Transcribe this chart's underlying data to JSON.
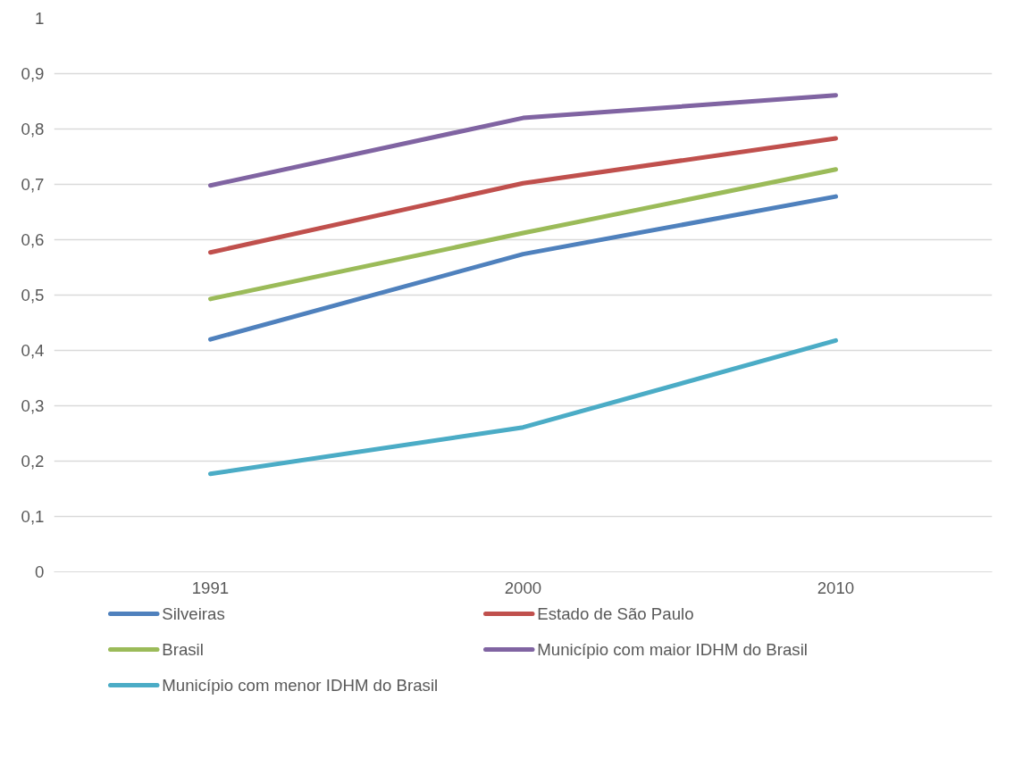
{
  "chart_data": {
    "type": "line",
    "categories": [
      "1991",
      "2000",
      "2010"
    ],
    "series": [
      {
        "name": "Silveiras",
        "color": "#4f81bd",
        "values": [
          0.42,
          0.574,
          0.678
        ]
      },
      {
        "name": "Estado de São Paulo",
        "color": "#c0504d",
        "values": [
          0.577,
          0.702,
          0.783
        ]
      },
      {
        "name": "Brasil",
        "color": "#9bbb59",
        "values": [
          0.493,
          0.612,
          0.727
        ]
      },
      {
        "name": "Município com maior IDHM do Brasil",
        "color": "#8064a2",
        "values": [
          0.698,
          0.82,
          0.861
        ]
      },
      {
        "name": "Município com menor IDHM do Brasil",
        "color": "#4bacc6",
        "values": [
          0.177,
          0.261,
          0.418
        ]
      }
    ],
    "ylim": [
      0,
      1
    ],
    "yticks": [
      0,
      {
        "value": 0.1,
        "label": "0,1"
      },
      {
        "value": 0.2,
        "label": "0,2"
      },
      {
        "value": 0.3,
        "label": "0,3"
      },
      {
        "value": 0.4,
        "label": "0,4"
      },
      {
        "value": 0.5,
        "label": "0,5"
      },
      {
        "value": 0.6,
        "label": "0,6"
      },
      {
        "value": 0.7,
        "label": "0,7"
      },
      {
        "value": 0.8,
        "label": "0,8"
      },
      {
        "value": 0.9,
        "label": "0,9"
      },
      1
    ],
    "grid": "y",
    "legend": "bottom",
    "marker": "none",
    "line_style": "solid"
  }
}
